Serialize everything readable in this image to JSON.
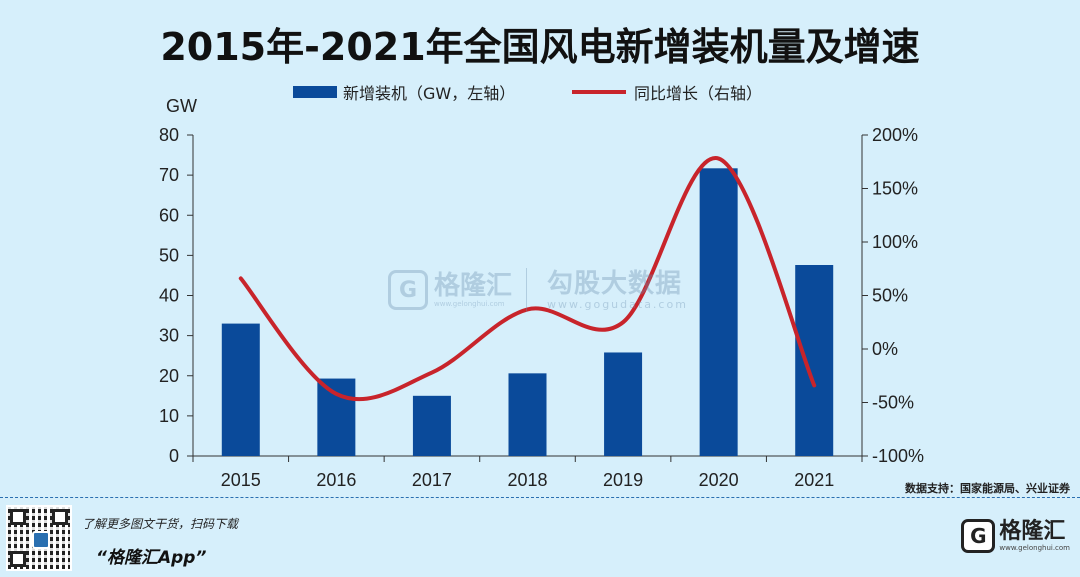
{
  "title": "2015年-2021年全国风电新增装机量及增速",
  "source": "数据支持：国家能源局、兴业证券",
  "promo": {
    "line1": "了解更多图文干货，扫码下载",
    "line2": "“格隆汇App”"
  },
  "brand": {
    "logo_letter": "G",
    "name": "格隆汇",
    "url": "www.gelonghui.com"
  },
  "watermark": {
    "logo_letter": "G",
    "name1": "格隆汇",
    "url1": "www.gelonghui.com",
    "name2": "勾股大数据",
    "url2": "www.gogudata.com"
  },
  "colors": {
    "bar": "#0a4a9a",
    "line": "#c8242b",
    "background": "#d6effb"
  },
  "chart_data": {
    "type": "bar",
    "categories": [
      "2015",
      "2016",
      "2017",
      "2018",
      "2019",
      "2020",
      "2021"
    ],
    "series": [
      {
        "name": "新增装机（GW，左轴）",
        "type": "bar",
        "axis": "left",
        "values": [
          33.0,
          19.3,
          15.0,
          20.6,
          25.8,
          71.7,
          47.6
        ]
      },
      {
        "name": "同比增长（右轴）",
        "type": "line",
        "axis": "right",
        "values": [
          66,
          -42,
          -22,
          37,
          25,
          178,
          -34
        ]
      }
    ],
    "ylabel": "GW",
    "ylim": [
      0,
      80
    ],
    "yticks": [
      0,
      10,
      20,
      30,
      40,
      50,
      60,
      70,
      80
    ],
    "y2lim": [
      -100,
      200
    ],
    "y2ticks": [
      "-100%",
      "-50%",
      "0%",
      "50%",
      "100%",
      "150%",
      "200%"
    ],
    "legend_position": "top-center",
    "grid": false
  }
}
